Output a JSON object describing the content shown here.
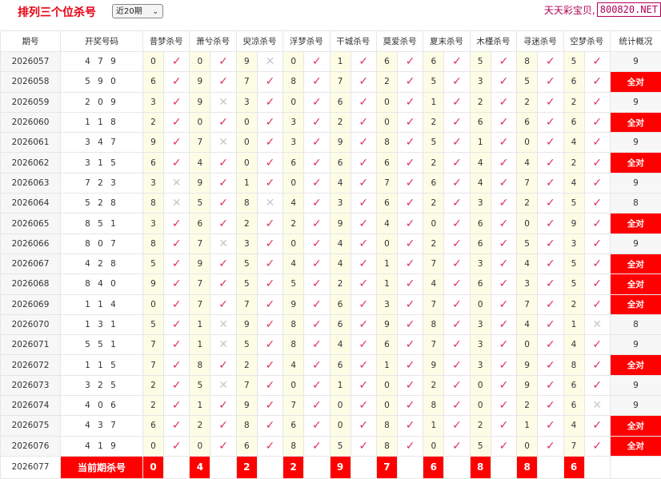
{
  "header": {
    "title": "排列三个位杀号",
    "period_select": "近20期",
    "brand_text": "天天彩宝贝,",
    "brand_site": "800820.NET"
  },
  "colors": {
    "accent": "#e60012",
    "full_badge": "#ff0000",
    "check": "#e0305a",
    "cross": "#c8c8c8",
    "kill_cell": "#fdfde6"
  },
  "table": {
    "headers": [
      "期号",
      "开奖号码",
      "昔梦杀号",
      "萧兮杀号",
      "臾凉杀号",
      "浮梦杀号",
      "干城杀号",
      "莫爱杀号",
      "夏末杀号",
      "木槿杀号",
      "寻迷杀号",
      "空梦杀号",
      "统计概况"
    ],
    "mark_symbols": {
      "hit": "✓",
      "miss": "✕"
    },
    "rows": [
      {
        "issue": "2026057",
        "draw": "4 7 9",
        "kills": [
          0,
          0,
          9,
          0,
          1,
          6,
          6,
          5,
          8,
          5
        ],
        "misses": [
          2
        ],
        "stat": "9"
      },
      {
        "issue": "2026058",
        "draw": "5 9 0",
        "kills": [
          6,
          9,
          7,
          8,
          7,
          2,
          5,
          3,
          5,
          6
        ],
        "misses": [],
        "stat": "全对"
      },
      {
        "issue": "2026059",
        "draw": "2 0 9",
        "kills": [
          3,
          9,
          3,
          0,
          6,
          0,
          1,
          2,
          2,
          2
        ],
        "misses": [
          1
        ],
        "stat": "9"
      },
      {
        "issue": "2026060",
        "draw": "1 1 8",
        "kills": [
          2,
          0,
          0,
          3,
          2,
          0,
          2,
          6,
          6,
          6
        ],
        "misses": [],
        "stat": "全对"
      },
      {
        "issue": "2026061",
        "draw": "3 4 7",
        "kills": [
          9,
          7,
          0,
          3,
          9,
          8,
          5,
          1,
          0,
          4
        ],
        "misses": [
          1
        ],
        "stat": "9"
      },
      {
        "issue": "2026062",
        "draw": "3 1 5",
        "kills": [
          6,
          4,
          0,
          6,
          6,
          6,
          2,
          4,
          4,
          2
        ],
        "misses": [],
        "stat": "全对"
      },
      {
        "issue": "2026063",
        "draw": "7 2 3",
        "kills": [
          3,
          9,
          1,
          0,
          4,
          7,
          6,
          4,
          7,
          4
        ],
        "misses": [
          0
        ],
        "stat": "9"
      },
      {
        "issue": "2026064",
        "draw": "5 2 8",
        "kills": [
          8,
          5,
          8,
          4,
          3,
          6,
          2,
          3,
          2,
          5
        ],
        "misses": [
          0,
          2
        ],
        "stat": "8"
      },
      {
        "issue": "2026065",
        "draw": "8 5 1",
        "kills": [
          3,
          6,
          2,
          2,
          9,
          4,
          0,
          6,
          0,
          9
        ],
        "misses": [],
        "stat": "全对"
      },
      {
        "issue": "2026066",
        "draw": "8 0 7",
        "kills": [
          8,
          7,
          3,
          0,
          4,
          0,
          2,
          6,
          5,
          3
        ],
        "misses": [
          1
        ],
        "stat": "9"
      },
      {
        "issue": "2026067",
        "draw": "4 2 8",
        "kills": [
          5,
          9,
          5,
          4,
          4,
          1,
          7,
          3,
          4,
          5
        ],
        "misses": [],
        "stat": "全对"
      },
      {
        "issue": "2026068",
        "draw": "8 4 0",
        "kills": [
          9,
          7,
          5,
          5,
          2,
          1,
          4,
          6,
          3,
          5
        ],
        "misses": [],
        "stat": "全对"
      },
      {
        "issue": "2026069",
        "draw": "1 1 4",
        "kills": [
          0,
          7,
          7,
          9,
          6,
          3,
          7,
          0,
          7,
          2
        ],
        "misses": [],
        "stat": "全对"
      },
      {
        "issue": "2026070",
        "draw": "1 3 1",
        "kills": [
          5,
          1,
          9,
          8,
          6,
          9,
          8,
          3,
          4,
          1
        ],
        "misses": [
          1,
          9
        ],
        "stat": "8"
      },
      {
        "issue": "2026071",
        "draw": "5 5 1",
        "kills": [
          7,
          1,
          5,
          8,
          4,
          6,
          7,
          3,
          0,
          4
        ],
        "misses": [
          1
        ],
        "stat": "9"
      },
      {
        "issue": "2026072",
        "draw": "1 1 5",
        "kills": [
          7,
          8,
          2,
          4,
          6,
          1,
          9,
          3,
          9,
          8
        ],
        "misses": [],
        "stat": "全对"
      },
      {
        "issue": "2026073",
        "draw": "3 2 5",
        "kills": [
          2,
          5,
          7,
          0,
          1,
          0,
          2,
          0,
          9,
          6
        ],
        "misses": [
          1
        ],
        "stat": "9"
      },
      {
        "issue": "2026074",
        "draw": "4 0 6",
        "kills": [
          2,
          1,
          9,
          7,
          0,
          0,
          8,
          0,
          2,
          6
        ],
        "misses": [
          9
        ],
        "stat": "9"
      },
      {
        "issue": "2026075",
        "draw": "4 3 7",
        "kills": [
          6,
          2,
          8,
          6,
          0,
          8,
          1,
          2,
          1,
          4
        ],
        "misses": [],
        "stat": "全对"
      },
      {
        "issue": "2026076",
        "draw": "4 1 9",
        "kills": [
          0,
          0,
          6,
          8,
          5,
          8,
          0,
          5,
          0,
          7
        ],
        "misses": [],
        "stat": "全对"
      }
    ],
    "current": {
      "issue": "2026077",
      "label": "当前期杀号",
      "kills": [
        0,
        4,
        2,
        2,
        9,
        7,
        6,
        8,
        8,
        6
      ]
    }
  }
}
